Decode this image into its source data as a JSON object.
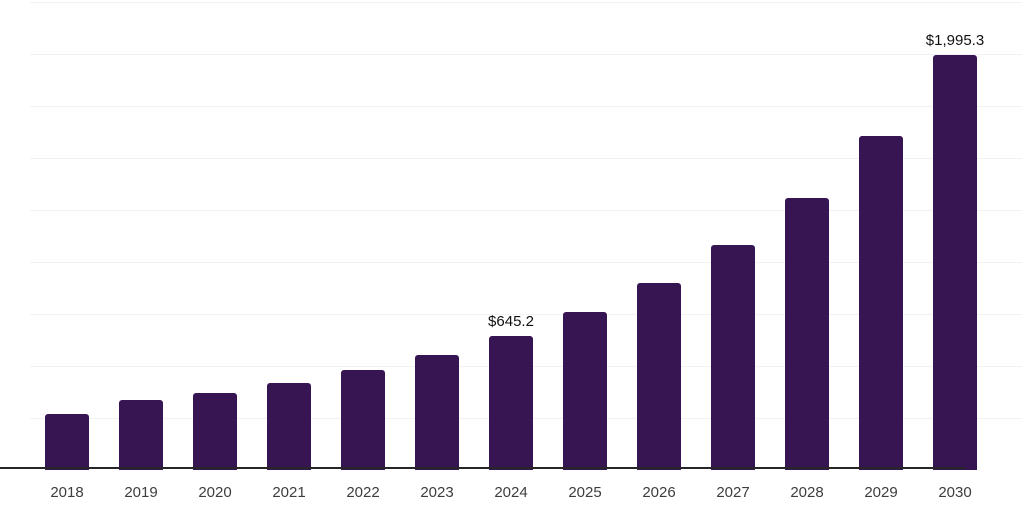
{
  "chart_data": {
    "type": "bar",
    "title": "",
    "xlabel": "",
    "ylabel": "",
    "categories": [
      "2018",
      "2019",
      "2020",
      "2021",
      "2022",
      "2023",
      "2024",
      "2025",
      "2026",
      "2027",
      "2028",
      "2029",
      "2030"
    ],
    "values": [
      268,
      335,
      368,
      418,
      483,
      553,
      645.2,
      760,
      899,
      1082,
      1308,
      1606,
      1995.3
    ],
    "value_labels": [
      "",
      "",
      "",
      "",
      "",
      "",
      "$645.2",
      "",
      "",
      "",
      "",
      "",
      "$1,995.3"
    ],
    "ylim": [
      0,
      2250
    ],
    "gridline_step": 250,
    "grid": true,
    "legend_position": "none",
    "colors": {
      "bar": "#371452",
      "gridline": "#f2f2f2",
      "axis": "#262626",
      "tick_label": "#3d3d3d",
      "value_label": "#111111",
      "background": "#ffffff"
    }
  }
}
